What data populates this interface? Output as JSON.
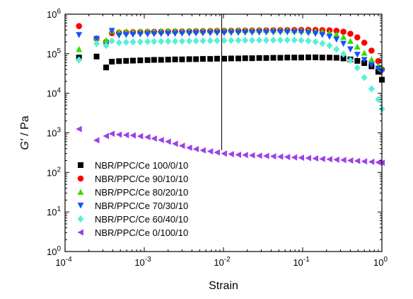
{
  "chart_data": {
    "type": "scatter",
    "xlabel": "Strain",
    "ylabel_main": "G′",
    "ylabel_unit": " / Pa",
    "x_scale": "log",
    "y_scale": "log",
    "xlim": [
      0.0001,
      1
    ],
    "ylim": [
      1,
      1000000
    ],
    "x_ticks": [
      {
        "value": 0.0001,
        "base": "10",
        "exp": "-4"
      },
      {
        "value": 0.001,
        "base": "10",
        "exp": "-3"
      },
      {
        "value": 0.01,
        "base": "10",
        "exp": "-2"
      },
      {
        "value": 0.1,
        "base": "10",
        "exp": "-1"
      },
      {
        "value": 1,
        "base": "10",
        "exp": "0"
      }
    ],
    "y_ticks": [
      {
        "value": 1,
        "base": "10",
        "exp": "0"
      },
      {
        "value": 10,
        "base": "10",
        "exp": "1"
      },
      {
        "value": 100,
        "base": "10",
        "exp": "2"
      },
      {
        "value": 1000,
        "base": "10",
        "exp": "3"
      },
      {
        "value": 10000,
        "base": "10",
        "exp": "4"
      },
      {
        "value": 100000,
        "base": "10",
        "exp": "5"
      },
      {
        "value": 1000000,
        "base": "10",
        "exp": "6"
      }
    ],
    "vline_x": 0.0095,
    "grid": false,
    "legend_position": "lower-left",
    "x": [
      0.00015,
      0.00025,
      0.00033,
      0.00039,
      0.00048,
      0.00059,
      0.00072,
      0.00089,
      0.0011,
      0.00133,
      0.00163,
      0.002,
      0.00245,
      0.003,
      0.0037,
      0.0045,
      0.0055,
      0.0068,
      0.0083,
      0.0102,
      0.0125,
      0.0154,
      0.0188,
      0.023,
      0.0283,
      0.0347,
      0.0426,
      0.0522,
      0.064,
      0.0785,
      0.096,
      0.118,
      0.145,
      0.177,
      0.218,
      0.267,
      0.327,
      0.4,
      0.49,
      0.6,
      0.74,
      0.9,
      1.0
    ],
    "series": [
      {
        "name": "NBR/PPC/Ce  100/0/10",
        "marker": "square",
        "color": "#000000",
        "values": [
          80000,
          85000,
          45000,
          63000,
          65000,
          66000,
          67000,
          68000,
          69000,
          70000,
          70000,
          71000,
          72000,
          72000,
          73000,
          73000,
          74000,
          74000,
          75000,
          75000,
          76000,
          76000,
          77000,
          77000,
          78000,
          78000,
          79000,
          79000,
          80000,
          80000,
          80000,
          81000,
          81000,
          80000,
          80000,
          79000,
          76000,
          72000,
          66000,
          58000,
          48000,
          35000,
          22000
        ]
      },
      {
        "name": "NBR/PPC/Ce  90/10/10",
        "marker": "circle",
        "color": "#ff0000",
        "values": [
          500000,
          240000,
          200000,
          330000,
          340000,
          345000,
          350000,
          352000,
          355000,
          358000,
          360000,
          362000,
          364000,
          366000,
          368000,
          370000,
          372000,
          374000,
          376000,
          378000,
          380000,
          382000,
          384000,
          386000,
          388000,
          390000,
          392000,
          394000,
          396000,
          398000,
          400000,
          400000,
          398000,
          395000,
          390000,
          380000,
          360000,
          320000,
          260000,
          190000,
          120000,
          65000,
          40000
        ]
      },
      {
        "name": "NBR/PPC/Ce  80/20/10",
        "marker": "triangle-up",
        "color": "#33dd00",
        "values": [
          130000,
          250000,
          220000,
          380000,
          360000,
          365000,
          368000,
          370000,
          372000,
          374000,
          376000,
          378000,
          380000,
          382000,
          384000,
          386000,
          388000,
          390000,
          392000,
          394000,
          395000,
          396000,
          397000,
          398000,
          399000,
          400000,
          400000,
          400000,
          398000,
          396000,
          392000,
          386000,
          375000,
          360000,
          340000,
          310000,
          265000,
          210000,
          150000,
          105000,
          72000,
          50000,
          42000
        ]
      },
      {
        "name": "NBR/PPC/Ce  70/30/10",
        "marker": "triangle-down",
        "color": "#1a4fff",
        "values": [
          300000,
          240000,
          160000,
          380000,
          290000,
          300000,
          305000,
          310000,
          312000,
          315000,
          318000,
          320000,
          322000,
          324000,
          326000,
          328000,
          330000,
          332000,
          334000,
          336000,
          338000,
          340000,
          342000,
          344000,
          346000,
          348000,
          350000,
          352000,
          352000,
          350000,
          345000,
          335000,
          320000,
          300000,
          270000,
          230000,
          180000,
          130000,
          95000,
          70000,
          52000,
          42000,
          36000
        ]
      },
      {
        "name": "NBR/PPC/Ce  60/40/10",
        "marker": "diamond",
        "color": "#55f0d8",
        "values": [
          70000,
          180000,
          160000,
          210000,
          190000,
          195000,
          198000,
          200000,
          202000,
          204000,
          205000,
          206000,
          207000,
          208000,
          210000,
          211000,
          212000,
          213000,
          214000,
          215000,
          216000,
          217000,
          218000,
          219000,
          220000,
          220000,
          221000,
          222000,
          222000,
          221000,
          218000,
          212000,
          200000,
          182000,
          160000,
          130000,
          98000,
          68000,
          44000,
          25000,
          13000,
          7000,
          4000
        ]
      },
      {
        "name": "NBR/PPC/Ce  0/100/10",
        "marker": "triangle-left",
        "color": "#9c42e8",
        "values": [
          1250,
          650,
          830,
          950,
          900,
          880,
          860,
          820,
          780,
          720,
          660,
          600,
          530,
          470,
          420,
          390,
          360,
          340,
          320,
          300,
          290,
          280,
          275,
          270,
          265,
          260,
          255,
          250,
          245,
          240,
          235,
          230,
          225,
          220,
          215,
          210,
          205,
          200,
          195,
          190,
          185,
          180,
          175
        ]
      }
    ]
  }
}
